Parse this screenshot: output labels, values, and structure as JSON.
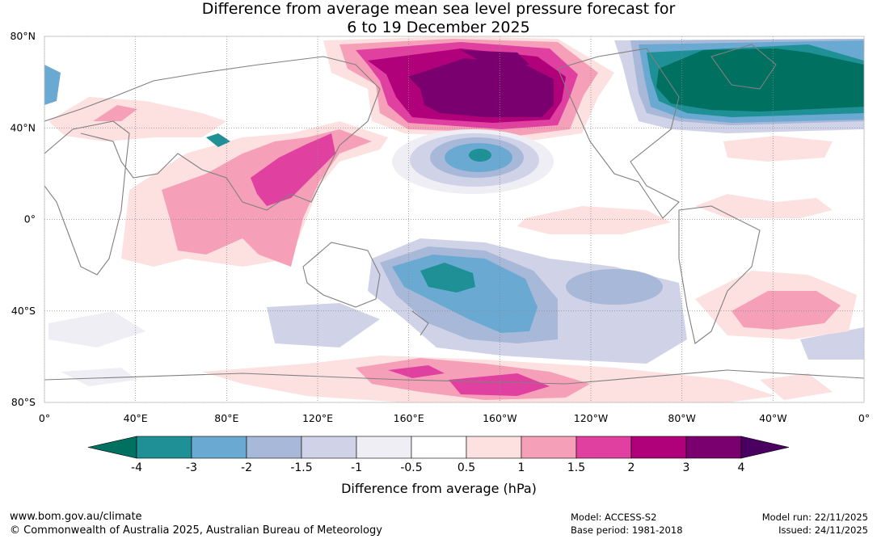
{
  "title": {
    "line1": "Difference from average mean sea level pressure forecast for",
    "line2": "6 to 19 December 2025"
  },
  "map": {
    "lat_labels": [
      "80°N",
      "40°N",
      "0°",
      "40°S",
      "80°S"
    ],
    "lon_labels": [
      "0°",
      "40°E",
      "80°E",
      "120°E",
      "160°E",
      "160°W",
      "120°W",
      "80°W",
      "40°W",
      "0°"
    ],
    "land_color": "#808080",
    "grid_color": "#8a8a8a"
  },
  "colorbar": {
    "colors": [
      "#007060",
      "#1e9096",
      "#6aaad2",
      "#a8b8d8",
      "#d0d2e8",
      "#f0eef5",
      "#ffffff",
      "#fde0e0",
      "#f5a0b8",
      "#e040a0",
      "#b0007a",
      "#7a0070",
      "#4a0060"
    ],
    "tick_labels": [
      "-4",
      "-3",
      "-2",
      "-1.5",
      "-1",
      "-0.5",
      "0.5",
      "1",
      "1.5",
      "2",
      "3",
      "4"
    ],
    "title": "Difference from average (hPa)"
  },
  "footer": {
    "website": "www.bom.gov.au/climate",
    "copyright": "© Commonwealth of Australia 2025, Australian Bureau of Meteorology",
    "model": "Model: ACCESS-S2",
    "base_period": "Base period: 1981-2018",
    "model_run": "Model run: 22/11/2025",
    "issued": "Issued: 24/11/2025"
  }
}
